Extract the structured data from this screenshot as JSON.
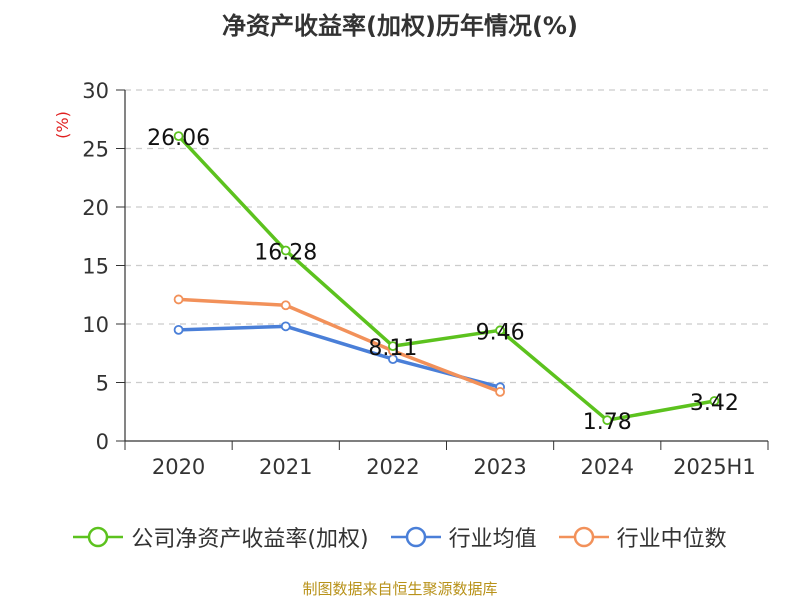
{
  "chart_data": {
    "type": "line",
    "title": "净资产收益率(加权)历年情况(%)",
    "ylabel": "(%)",
    "categories": [
      "2020",
      "2021",
      "2022",
      "2023",
      "2024",
      "2025H1"
    ],
    "ylim": [
      0,
      30
    ],
    "yticks": [
      0,
      5,
      10,
      15,
      20,
      25,
      30
    ],
    "grid": true,
    "legend_position": "bottom",
    "series": [
      {
        "name": "公司净资产收益率(加权)",
        "color": "#5cc21e",
        "values": [
          26.06,
          16.28,
          8.11,
          9.46,
          1.78,
          3.42
        ],
        "labels": [
          "26.06",
          "16.28",
          "8.11",
          "9.46",
          "1.78",
          "3.42"
        ]
      },
      {
        "name": "行业均值",
        "color": "#4a7fd8",
        "values": [
          9.5,
          9.8,
          7.0,
          4.6,
          null,
          null
        ]
      },
      {
        "name": "行业中位数",
        "color": "#f2915a",
        "values": [
          12.1,
          11.6,
          7.7,
          4.2,
          null,
          null
        ]
      }
    ]
  },
  "source_note": "制图数据来自恒生聚源数据库"
}
